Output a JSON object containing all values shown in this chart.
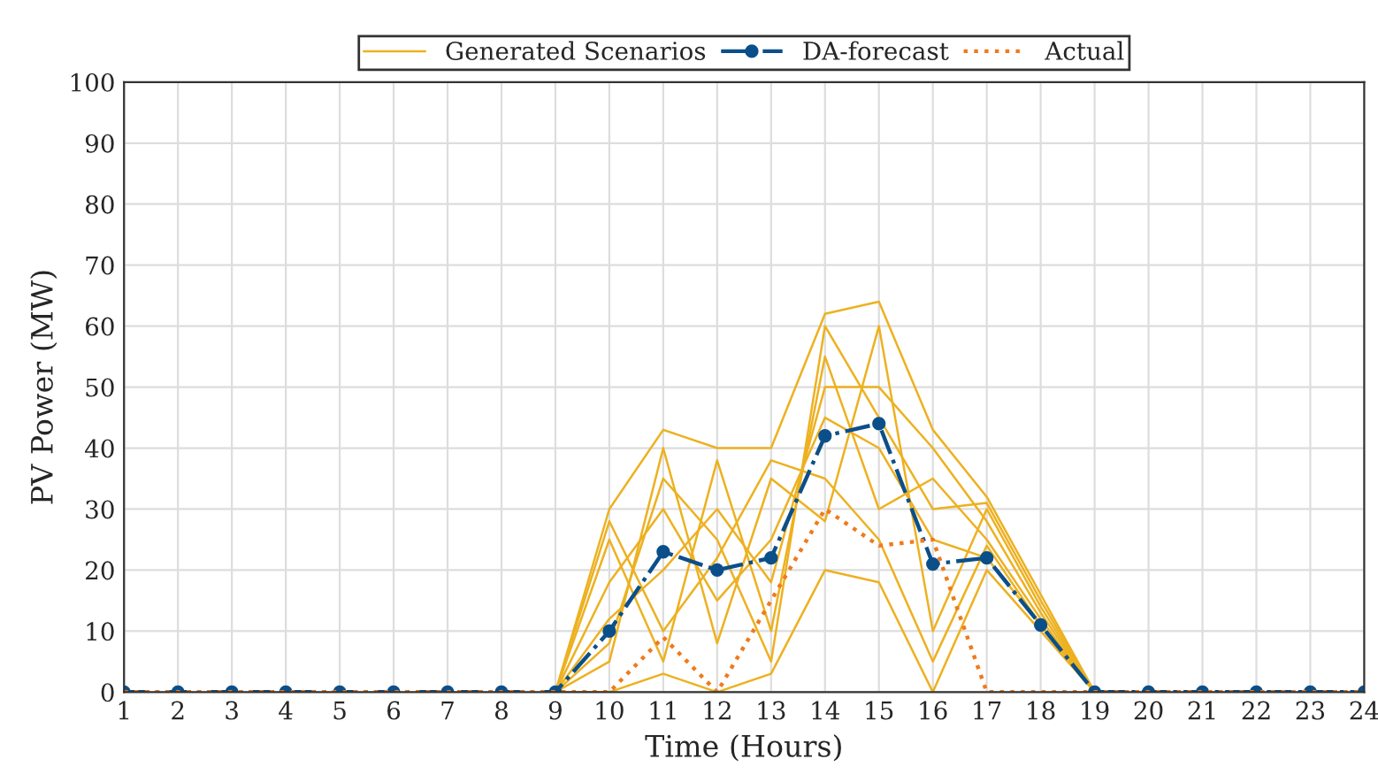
{
  "chart_data": {
    "type": "line",
    "xlabel": "Time (Hours)",
    "ylabel": "PV Power (MW)",
    "x": [
      1,
      2,
      3,
      4,
      5,
      6,
      7,
      8,
      9,
      10,
      11,
      12,
      13,
      14,
      15,
      16,
      17,
      18,
      19,
      20,
      21,
      22,
      23,
      24
    ],
    "xlim": [
      1,
      24
    ],
    "xticks": [
      1,
      2,
      3,
      4,
      5,
      6,
      7,
      8,
      9,
      10,
      11,
      12,
      13,
      14,
      15,
      16,
      17,
      18,
      19,
      20,
      21,
      22,
      23,
      24
    ],
    "ylim": [
      0,
      100
    ],
    "yticks": [
      0,
      10,
      20,
      30,
      40,
      50,
      60,
      70,
      80,
      90,
      100
    ],
    "grid": true,
    "legend": "top",
    "series": [
      {
        "name": "Generated Scenarios",
        "color": "#edb120",
        "line_style": "solid",
        "marker": "none",
        "values": [
          null,
          null,
          null,
          null,
          null,
          null,
          null,
          null,
          0,
          30,
          43,
          40,
          40,
          62,
          64,
          43,
          32,
          16,
          0,
          null,
          null,
          null,
          null,
          null
        ]
      },
      {
        "color": "#edb120",
        "line_style": "solid",
        "marker": "none",
        "values": [
          null,
          null,
          null,
          null,
          null,
          null,
          null,
          null,
          0,
          0,
          3,
          0,
          3,
          20,
          18,
          0,
          20,
          10,
          0,
          null,
          null,
          null,
          null,
          null
        ]
      },
      {
        "color": "#edb120",
        "line_style": "solid",
        "marker": "none",
        "values": [
          null,
          null,
          null,
          null,
          null,
          null,
          null,
          null,
          0,
          25,
          5,
          38,
          10,
          55,
          30,
          35,
          25,
          12,
          0,
          null,
          null,
          null,
          null,
          null
        ]
      },
      {
        "color": "#edb120",
        "line_style": "solid",
        "marker": "none",
        "values": [
          null,
          null,
          null,
          null,
          null,
          null,
          null,
          null,
          0,
          5,
          40,
          8,
          35,
          28,
          60,
          10,
          30,
          14,
          0,
          null,
          null,
          null,
          null,
          null
        ]
      },
      {
        "color": "#edb120",
        "line_style": "solid",
        "marker": "none",
        "values": [
          null,
          null,
          null,
          null,
          null,
          null,
          null,
          null,
          0,
          18,
          30,
          15,
          25,
          45,
          40,
          25,
          22,
          11,
          0,
          null,
          null,
          null,
          null,
          null
        ]
      },
      {
        "color": "#edb120",
        "line_style": "solid",
        "marker": "none",
        "values": [
          null,
          null,
          null,
          null,
          null,
          null,
          null,
          null,
          0,
          12,
          20,
          30,
          18,
          50,
          50,
          40,
          28,
          13,
          0,
          null,
          null,
          null,
          null,
          null
        ]
      },
      {
        "color": "#edb120",
        "line_style": "solid",
        "marker": "none",
        "values": [
          null,
          null,
          null,
          null,
          null,
          null,
          null,
          null,
          0,
          28,
          10,
          22,
          38,
          35,
          25,
          5,
          24,
          11,
          0,
          null,
          null,
          null,
          null,
          null
        ]
      },
      {
        "color": "#edb120",
        "line_style": "solid",
        "marker": "none",
        "values": [
          null,
          null,
          null,
          null,
          null,
          null,
          null,
          null,
          0,
          8,
          35,
          25,
          5,
          60,
          45,
          30,
          31,
          15,
          0,
          null,
          null,
          null,
          null,
          null
        ]
      },
      {
        "name": "DA-forecast",
        "color": "#0b4f8a",
        "line_style": "dashed",
        "marker": "circle",
        "values": [
          0,
          0,
          0,
          0,
          0,
          0,
          0,
          0,
          0,
          10,
          23,
          20,
          22,
          42,
          44,
          21,
          22,
          11,
          0,
          0,
          0,
          0,
          0,
          0
        ]
      },
      {
        "name": "Actual",
        "color": "#f07a1c",
        "line_style": "dotted",
        "marker": "none",
        "values": [
          0,
          0,
          0,
          0,
          0,
          0,
          0,
          0,
          0,
          0,
          9,
          0,
          15,
          30,
          24,
          25,
          0,
          0,
          0,
          0,
          0,
          0,
          0,
          0
        ]
      }
    ]
  }
}
